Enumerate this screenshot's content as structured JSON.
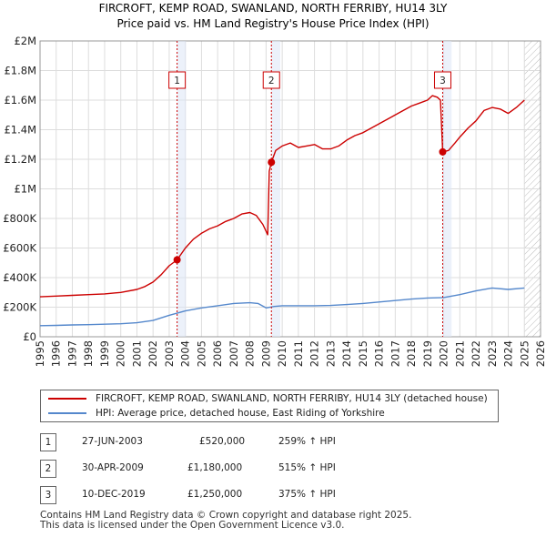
{
  "chart_data": {
    "type": "line",
    "title": "FIRCROFT, KEMP ROAD, SWANLAND, NORTH FERRIBY, HU14 3LY",
    "subtitle": "Price paid vs. HM Land Registry's House Price Index (HPI)",
    "x_range": [
      1995,
      2026
    ],
    "ylim": [
      0,
      2000000
    ],
    "y_ticks": [
      {
        "value": 0,
        "label": "£0"
      },
      {
        "value": 200000,
        "label": "£200K"
      },
      {
        "value": 400000,
        "label": "£400K"
      },
      {
        "value": 600000,
        "label": "£600K"
      },
      {
        "value": 800000,
        "label": "£800K"
      },
      {
        "value": 1000000,
        "label": "£1M"
      },
      {
        "value": 1200000,
        "label": "£1.2M"
      },
      {
        "value": 1400000,
        "label": "£1.4M"
      },
      {
        "value": 1600000,
        "label": "£1.6M"
      },
      {
        "value": 1800000,
        "label": "£1.8M"
      },
      {
        "value": 2000000,
        "label": "£2M"
      }
    ],
    "x_ticks": [
      "1995",
      "1996",
      "1997",
      "1998",
      "1999",
      "2000",
      "2001",
      "2002",
      "2003",
      "2004",
      "2005",
      "2006",
      "2007",
      "2008",
      "2009",
      "2010",
      "2011",
      "2012",
      "2013",
      "2014",
      "2015",
      "2016",
      "2017",
      "2018",
      "2019",
      "2020",
      "2021",
      "2022",
      "2023",
      "2024",
      "2025",
      "2026"
    ],
    "grid": true,
    "series": [
      {
        "name": "FIRCROFT, KEMP ROAD, SWANLAND, NORTH FERRIBY, HU14 3LY (detached house)",
        "color": "#cc0000",
        "x": [
          1995.0,
          1996.0,
          1997.0,
          1998.0,
          1999.0,
          2000.0,
          2001.0,
          2001.5,
          2002.0,
          2002.5,
          2003.0,
          2003.49,
          2004.0,
          2004.5,
          2005.0,
          2005.5,
          2006.0,
          2006.5,
          2007.0,
          2007.5,
          2008.0,
          2008.4,
          2008.8,
          2009.1,
          2009.2,
          2009.33,
          2009.6,
          2010.0,
          2010.5,
          2011.0,
          2011.5,
          2012.0,
          2012.5,
          2013.0,
          2013.5,
          2014.0,
          2014.5,
          2015.0,
          2015.5,
          2016.0,
          2016.5,
          2017.0,
          2017.5,
          2018.0,
          2018.5,
          2019.0,
          2019.3,
          2019.6,
          2019.8,
          2019.94,
          2020.3,
          2020.7,
          2021.0,
          2021.5,
          2022.0,
          2022.5,
          2023.0,
          2023.5,
          2024.0,
          2024.5,
          2025.0
        ],
        "y": [
          270000,
          275000,
          280000,
          285000,
          290000,
          300000,
          320000,
          340000,
          370000,
          420000,
          480000,
          520000,
          600000,
          660000,
          700000,
          730000,
          750000,
          780000,
          800000,
          830000,
          840000,
          820000,
          760000,
          690000,
          1120000,
          1180000,
          1260000,
          1290000,
          1310000,
          1280000,
          1290000,
          1300000,
          1270000,
          1270000,
          1290000,
          1330000,
          1360000,
          1380000,
          1410000,
          1440000,
          1470000,
          1500000,
          1530000,
          1560000,
          1580000,
          1600000,
          1630000,
          1620000,
          1600000,
          1250000,
          1260000,
          1310000,
          1350000,
          1410000,
          1460000,
          1530000,
          1550000,
          1540000,
          1510000,
          1550000,
          1600000
        ]
      },
      {
        "name": "HPI: Average price, detached house, East Riding of Yorkshire",
        "color": "#5588cc",
        "x": [
          1995.0,
          1996.0,
          1997.0,
          1998.0,
          1999.0,
          2000.0,
          2001.0,
          2002.0,
          2003.0,
          2004.0,
          2005.0,
          2006.0,
          2007.0,
          2008.0,
          2008.5,
          2009.0,
          2009.5,
          2010.0,
          2011.0,
          2012.0,
          2013.0,
          2014.0,
          2015.0,
          2016.0,
          2017.0,
          2018.0,
          2019.0,
          2020.0,
          2021.0,
          2022.0,
          2023.0,
          2024.0,
          2025.0
        ],
        "y": [
          75000,
          77000,
          80000,
          82000,
          85000,
          88000,
          95000,
          110000,
          145000,
          175000,
          195000,
          210000,
          225000,
          230000,
          225000,
          195000,
          205000,
          210000,
          210000,
          210000,
          212000,
          218000,
          225000,
          235000,
          245000,
          255000,
          262000,
          265000,
          285000,
          310000,
          330000,
          320000,
          330000
        ]
      }
    ],
    "markers": [
      {
        "label": "1",
        "x": 2003.49,
        "y": 520000
      },
      {
        "label": "2",
        "x": 2009.33,
        "y": 1180000
      },
      {
        "label": "3",
        "x": 2019.94,
        "y": 1250000
      }
    ],
    "hatch_from": 2025.0,
    "shade_color": "#dde6f5",
    "legend": [
      {
        "label": "FIRCROFT, KEMP ROAD, SWANLAND, NORTH FERRIBY, HU14 3LY (detached house)",
        "color": "#cc0000"
      },
      {
        "label": "HPI: Average price, detached house, East Riding of Yorkshire",
        "color": "#5588cc"
      }
    ]
  },
  "sales": [
    {
      "num": "1",
      "date": "27-JUN-2003",
      "price": "£520,000",
      "hpi": "259% ↑ HPI"
    },
    {
      "num": "2",
      "date": "30-APR-2009",
      "price": "£1,180,000",
      "hpi": "515% ↑ HPI"
    },
    {
      "num": "3",
      "date": "10-DEC-2019",
      "price": "£1,250,000",
      "hpi": "375% ↑ HPI"
    }
  ],
  "footer": {
    "line1": "Contains HM Land Registry data © Crown copyright and database right 2025.",
    "line2": "This data is licensed under the Open Government Licence v3.0."
  }
}
